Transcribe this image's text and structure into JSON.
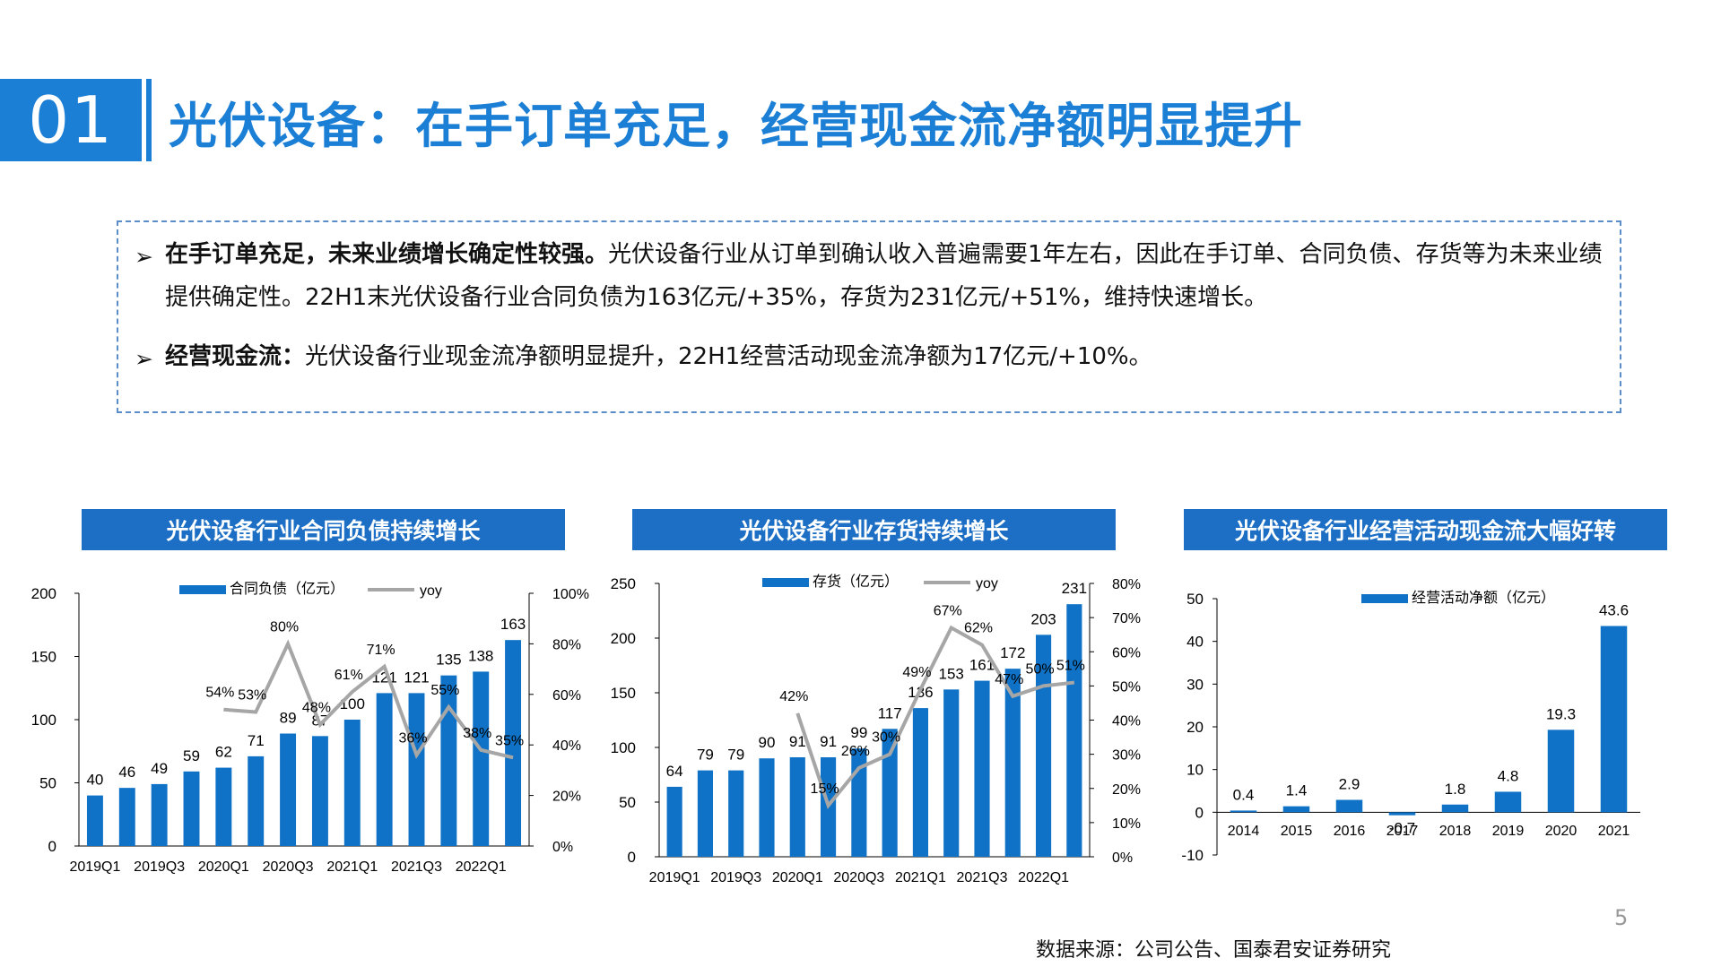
{
  "header": {
    "section_number": "01",
    "title": "光伏设备：在手订单充足，经营现金流净额明显提升"
  },
  "summary": {
    "bullet_symbol": "➢",
    "items": [
      {
        "bold": "在手订单充足，未来业绩增长确定性较强。",
        "text": "光伏设备行业从订单到确认收入普遍需要1年左右，因此在手订单、合同负债、存货等为未来业绩提供确定性。22H1末光伏设备行业合同负债为163亿元/+35%，存货为231亿元/+51%，维持快速增长。"
      },
      {
        "bold": "经营现金流：",
        "text": "光伏设备行业现金流净额明显提升，22H1经营活动现金流净额为17亿元/+10%。"
      }
    ]
  },
  "charts": {
    "left_title": "光伏设备行业合同负债持续增长",
    "middle_title": "光伏设备行业存货持续增长",
    "right_title": "光伏设备行业经营活动现金流大幅好转"
  },
  "footer": {
    "page_number": "5",
    "source": "数据来源：公司公告、国泰君安证券研究"
  },
  "colors": {
    "accent": "#1c7fd6",
    "bar": "#0f72c6",
    "line": "#a6a6a6",
    "title_bar": "#1c6fc4"
  },
  "chart_data": [
    {
      "type": "bar",
      "title": "光伏设备行业合同负债持续增长",
      "categories": [
        "2019Q1",
        "2019Q2",
        "2019Q3",
        "2019Q4",
        "2020Q1",
        "2020Q2",
        "2020Q3",
        "2020Q4",
        "2021Q1",
        "2021Q2",
        "2021Q3",
        "2021Q4",
        "2022Q1",
        "2022Q2"
      ],
      "tick_labels": [
        "2019Q1",
        "2019Q3",
        "2020Q1",
        "2020Q3",
        "2021Q1",
        "2021Q3",
        "2022Q1"
      ],
      "series": [
        {
          "name": "合同负债（亿元）",
          "type": "bar",
          "axis": "left",
          "values": [
            40,
            46,
            49,
            59,
            62,
            71,
            89,
            87,
            100,
            121,
            121,
            135,
            138,
            163
          ]
        },
        {
          "name": "yoy",
          "type": "line",
          "axis": "right",
          "values": [
            null,
            null,
            null,
            null,
            54,
            53,
            80,
            48,
            61,
            71,
            36,
            55,
            38,
            35
          ],
          "labels": [
            "",
            "",
            "",
            "",
            "54%",
            "53%",
            "80%",
            "48%",
            "61%",
            "71%",
            "36%",
            "55%",
            "38%",
            "35%"
          ]
        }
      ],
      "ylim": [
        0,
        200
      ],
      "yticks": [
        0,
        50,
        100,
        150,
        200
      ],
      "y2lim": [
        0,
        100
      ],
      "y2ticks": [
        "0%",
        "20%",
        "40%",
        "60%",
        "80%",
        "100%"
      ],
      "legend": "top"
    },
    {
      "type": "bar",
      "title": "光伏设备行业存货持续增长",
      "categories": [
        "2019Q1",
        "2019Q2",
        "2019Q3",
        "2019Q4",
        "2020Q1",
        "2020Q2",
        "2020Q3",
        "2020Q4",
        "2021Q1",
        "2021Q2",
        "2021Q3",
        "2021Q4",
        "2022Q1",
        "2022Q2"
      ],
      "tick_labels": [
        "2019Q1",
        "2019Q3",
        "2020Q1",
        "2020Q3",
        "2021Q1",
        "2021Q3",
        "2022Q1"
      ],
      "series": [
        {
          "name": "存货（亿元）",
          "type": "bar",
          "axis": "left",
          "values": [
            64,
            79,
            79,
            90,
            91,
            91,
            99,
            117,
            136,
            153,
            161,
            172,
            203,
            231
          ]
        },
        {
          "name": "yoy",
          "type": "line",
          "axis": "right",
          "values": [
            null,
            null,
            null,
            null,
            42,
            15,
            26,
            30,
            49,
            67,
            62,
            47,
            50,
            51
          ],
          "labels": [
            "",
            "",
            "",
            "",
            "42%",
            "15%",
            "26%",
            "30%",
            "49%",
            "67%",
            "62%",
            "47%",
            "50%",
            "51%"
          ]
        }
      ],
      "ylim": [
        0,
        250
      ],
      "yticks": [
        0,
        50,
        100,
        150,
        200,
        250
      ],
      "y2lim": [
        0,
        80
      ],
      "y2ticks": [
        "0%",
        "10%",
        "20%",
        "30%",
        "40%",
        "50%",
        "60%",
        "70%",
        "80%"
      ],
      "legend": "top"
    },
    {
      "type": "bar",
      "title": "光伏设备行业经营活动现金流大幅好转",
      "categories": [
        "2014",
        "2015",
        "2016",
        "2017",
        "2018",
        "2019",
        "2020",
        "2021"
      ],
      "series": [
        {
          "name": "经营活动净额（亿元）",
          "type": "bar",
          "axis": "left",
          "values": [
            0.4,
            1.4,
            2.9,
            -0.7,
            1.8,
            4.8,
            19.3,
            43.6
          ],
          "labels": [
            "0.4",
            "1.4",
            "2.9",
            "-0.7",
            "1.8",
            "4.8",
            "19.3",
            "43.6"
          ]
        }
      ],
      "ylim": [
        -10,
        50
      ],
      "yticks": [
        -10,
        0,
        10,
        20,
        30,
        40,
        50
      ],
      "legend": "top"
    }
  ]
}
